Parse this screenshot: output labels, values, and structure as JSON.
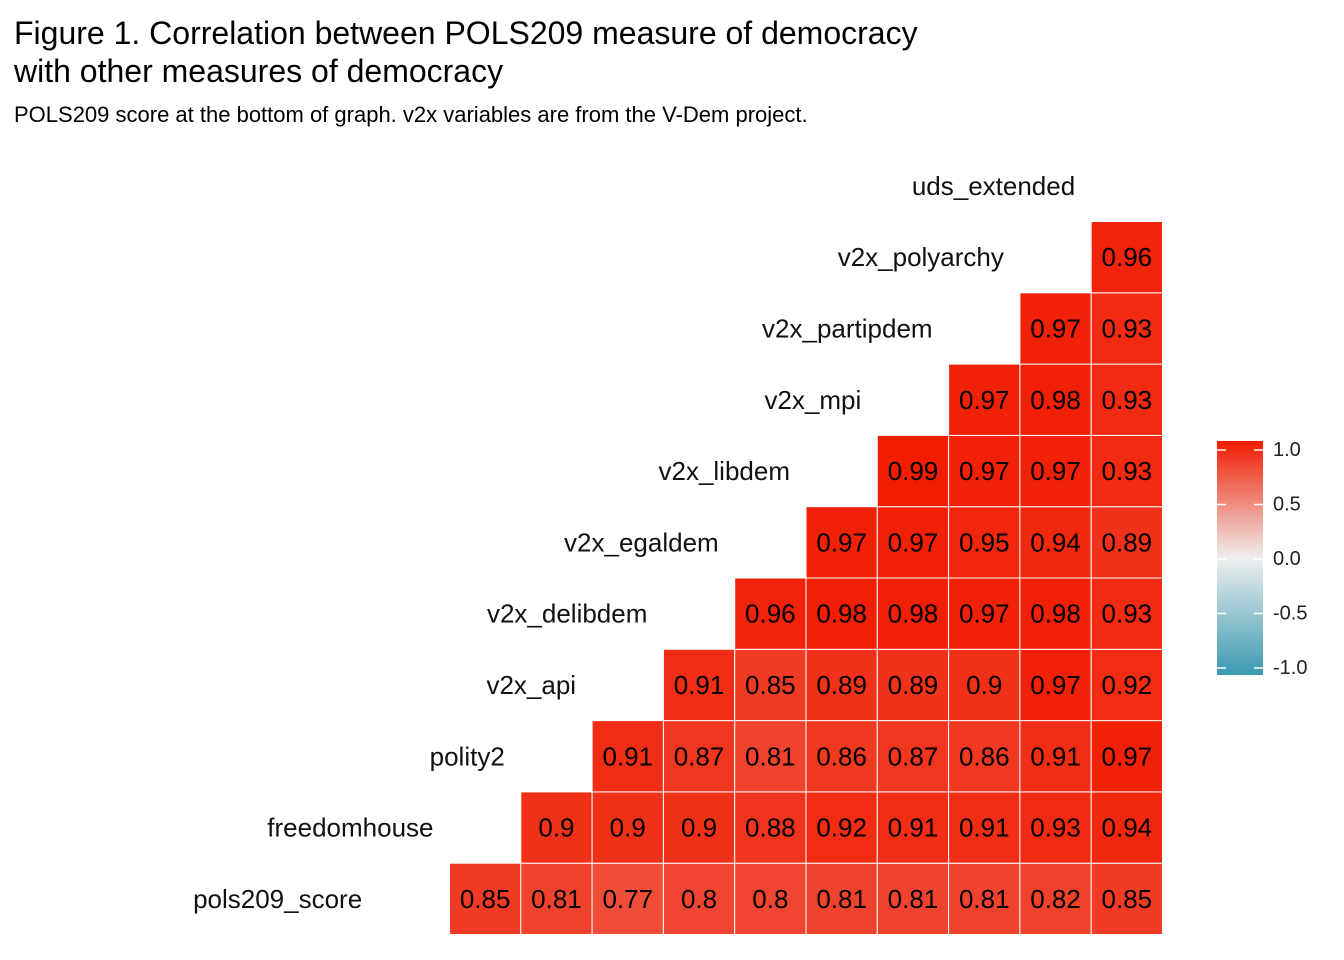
{
  "title_lines": [
    "Figure 1. Correlation between POLS209 measure of democracy",
    "with other measures of democracy"
  ],
  "subtitle": "POLS209 score at the bottom of graph. v2x variables are from the V-Dem project.",
  "chart_data": {
    "type": "heatmap",
    "variables": [
      "pols209_score",
      "freedomhouse",
      "polity2",
      "v2x_api",
      "v2x_delibdem",
      "v2x_egaldem",
      "v2x_libdem",
      "v2x_mpi",
      "v2x_partipdem",
      "v2x_polyarchy",
      "uds_extended"
    ],
    "cells": [
      {
        "row": "pols209_score",
        "col": "freedomhouse",
        "value": 0.85,
        "label": "0.85"
      },
      {
        "row": "pols209_score",
        "col": "polity2",
        "value": 0.81,
        "label": "0.81"
      },
      {
        "row": "pols209_score",
        "col": "v2x_api",
        "value": 0.77,
        "label": "0.77"
      },
      {
        "row": "pols209_score",
        "col": "v2x_delibdem",
        "value": 0.8,
        "label": "0.8"
      },
      {
        "row": "pols209_score",
        "col": "v2x_egaldem",
        "value": 0.8,
        "label": "0.8"
      },
      {
        "row": "pols209_score",
        "col": "v2x_libdem",
        "value": 0.81,
        "label": "0.81"
      },
      {
        "row": "pols209_score",
        "col": "v2x_mpi",
        "value": 0.81,
        "label": "0.81"
      },
      {
        "row": "pols209_score",
        "col": "v2x_partipdem",
        "value": 0.81,
        "label": "0.81"
      },
      {
        "row": "pols209_score",
        "col": "v2x_polyarchy",
        "value": 0.82,
        "label": "0.82"
      },
      {
        "row": "pols209_score",
        "col": "uds_extended",
        "value": 0.85,
        "label": "0.85"
      },
      {
        "row": "freedomhouse",
        "col": "polity2",
        "value": 0.9,
        "label": "0.9"
      },
      {
        "row": "freedomhouse",
        "col": "v2x_api",
        "value": 0.9,
        "label": "0.9"
      },
      {
        "row": "freedomhouse",
        "col": "v2x_delibdem",
        "value": 0.9,
        "label": "0.9"
      },
      {
        "row": "freedomhouse",
        "col": "v2x_egaldem",
        "value": 0.88,
        "label": "0.88"
      },
      {
        "row": "freedomhouse",
        "col": "v2x_libdem",
        "value": 0.92,
        "label": "0.92"
      },
      {
        "row": "freedomhouse",
        "col": "v2x_mpi",
        "value": 0.91,
        "label": "0.91"
      },
      {
        "row": "freedomhouse",
        "col": "v2x_partipdem",
        "value": 0.91,
        "label": "0.91"
      },
      {
        "row": "freedomhouse",
        "col": "v2x_polyarchy",
        "value": 0.93,
        "label": "0.93"
      },
      {
        "row": "freedomhouse",
        "col": "uds_extended",
        "value": 0.94,
        "label": "0.94"
      },
      {
        "row": "polity2",
        "col": "v2x_api",
        "value": 0.91,
        "label": "0.91"
      },
      {
        "row": "polity2",
        "col": "v2x_delibdem",
        "value": 0.87,
        "label": "0.87"
      },
      {
        "row": "polity2",
        "col": "v2x_egaldem",
        "value": 0.81,
        "label": "0.81"
      },
      {
        "row": "polity2",
        "col": "v2x_libdem",
        "value": 0.86,
        "label": "0.86"
      },
      {
        "row": "polity2",
        "col": "v2x_mpi",
        "value": 0.87,
        "label": "0.87"
      },
      {
        "row": "polity2",
        "col": "v2x_partipdem",
        "value": 0.86,
        "label": "0.86"
      },
      {
        "row": "polity2",
        "col": "v2x_polyarchy",
        "value": 0.91,
        "label": "0.91"
      },
      {
        "row": "polity2",
        "col": "uds_extended",
        "value": 0.97,
        "label": "0.97"
      },
      {
        "row": "v2x_api",
        "col": "v2x_delibdem",
        "value": 0.91,
        "label": "0.91"
      },
      {
        "row": "v2x_api",
        "col": "v2x_egaldem",
        "value": 0.85,
        "label": "0.85"
      },
      {
        "row": "v2x_api",
        "col": "v2x_libdem",
        "value": 0.89,
        "label": "0.89"
      },
      {
        "row": "v2x_api",
        "col": "v2x_mpi",
        "value": 0.89,
        "label": "0.89"
      },
      {
        "row": "v2x_api",
        "col": "v2x_partipdem",
        "value": 0.9,
        "label": "0.9"
      },
      {
        "row": "v2x_api",
        "col": "v2x_polyarchy",
        "value": 0.97,
        "label": "0.97"
      },
      {
        "row": "v2x_api",
        "col": "uds_extended",
        "value": 0.92,
        "label": "0.92"
      },
      {
        "row": "v2x_delibdem",
        "col": "v2x_egaldem",
        "value": 0.96,
        "label": "0.96"
      },
      {
        "row": "v2x_delibdem",
        "col": "v2x_libdem",
        "value": 0.98,
        "label": "0.98"
      },
      {
        "row": "v2x_delibdem",
        "col": "v2x_mpi",
        "value": 0.98,
        "label": "0.98"
      },
      {
        "row": "v2x_delibdem",
        "col": "v2x_partipdem",
        "value": 0.97,
        "label": "0.97"
      },
      {
        "row": "v2x_delibdem",
        "col": "v2x_polyarchy",
        "value": 0.98,
        "label": "0.98"
      },
      {
        "row": "v2x_delibdem",
        "col": "uds_extended",
        "value": 0.93,
        "label": "0.93"
      },
      {
        "row": "v2x_egaldem",
        "col": "v2x_libdem",
        "value": 0.97,
        "label": "0.97"
      },
      {
        "row": "v2x_egaldem",
        "col": "v2x_mpi",
        "value": 0.97,
        "label": "0.97"
      },
      {
        "row": "v2x_egaldem",
        "col": "v2x_partipdem",
        "value": 0.95,
        "label": "0.95"
      },
      {
        "row": "v2x_egaldem",
        "col": "v2x_polyarchy",
        "value": 0.94,
        "label": "0.94"
      },
      {
        "row": "v2x_egaldem",
        "col": "uds_extended",
        "value": 0.89,
        "label": "0.89"
      },
      {
        "row": "v2x_libdem",
        "col": "v2x_mpi",
        "value": 0.99,
        "label": "0.99"
      },
      {
        "row": "v2x_libdem",
        "col": "v2x_partipdem",
        "value": 0.97,
        "label": "0.97"
      },
      {
        "row": "v2x_libdem",
        "col": "v2x_polyarchy",
        "value": 0.97,
        "label": "0.97"
      },
      {
        "row": "v2x_libdem",
        "col": "uds_extended",
        "value": 0.93,
        "label": "0.93"
      },
      {
        "row": "v2x_mpi",
        "col": "v2x_partipdem",
        "value": 0.97,
        "label": "0.97"
      },
      {
        "row": "v2x_mpi",
        "col": "v2x_polyarchy",
        "value": 0.98,
        "label": "0.98"
      },
      {
        "row": "v2x_mpi",
        "col": "uds_extended",
        "value": 0.93,
        "label": "0.93"
      },
      {
        "row": "v2x_partipdem",
        "col": "v2x_polyarchy",
        "value": 0.97,
        "label": "0.97"
      },
      {
        "row": "v2x_partipdem",
        "col": "uds_extended",
        "value": 0.93,
        "label": "0.93"
      },
      {
        "row": "v2x_polyarchy",
        "col": "uds_extended",
        "value": 0.96,
        "label": "0.96"
      }
    ],
    "color_scale": {
      "low": "#3A9AB2",
      "mid": "#EEEEEE",
      "high": "#F11B00",
      "limits": [
        -1.0,
        1.0
      ]
    },
    "legend": {
      "position": "right",
      "ticks": [
        1.0,
        0.5,
        0.0,
        -0.5,
        -1.0
      ],
      "tick_labels": [
        "1.0",
        "0.5",
        "0.0",
        "-0.5",
        "-1.0"
      ]
    }
  }
}
